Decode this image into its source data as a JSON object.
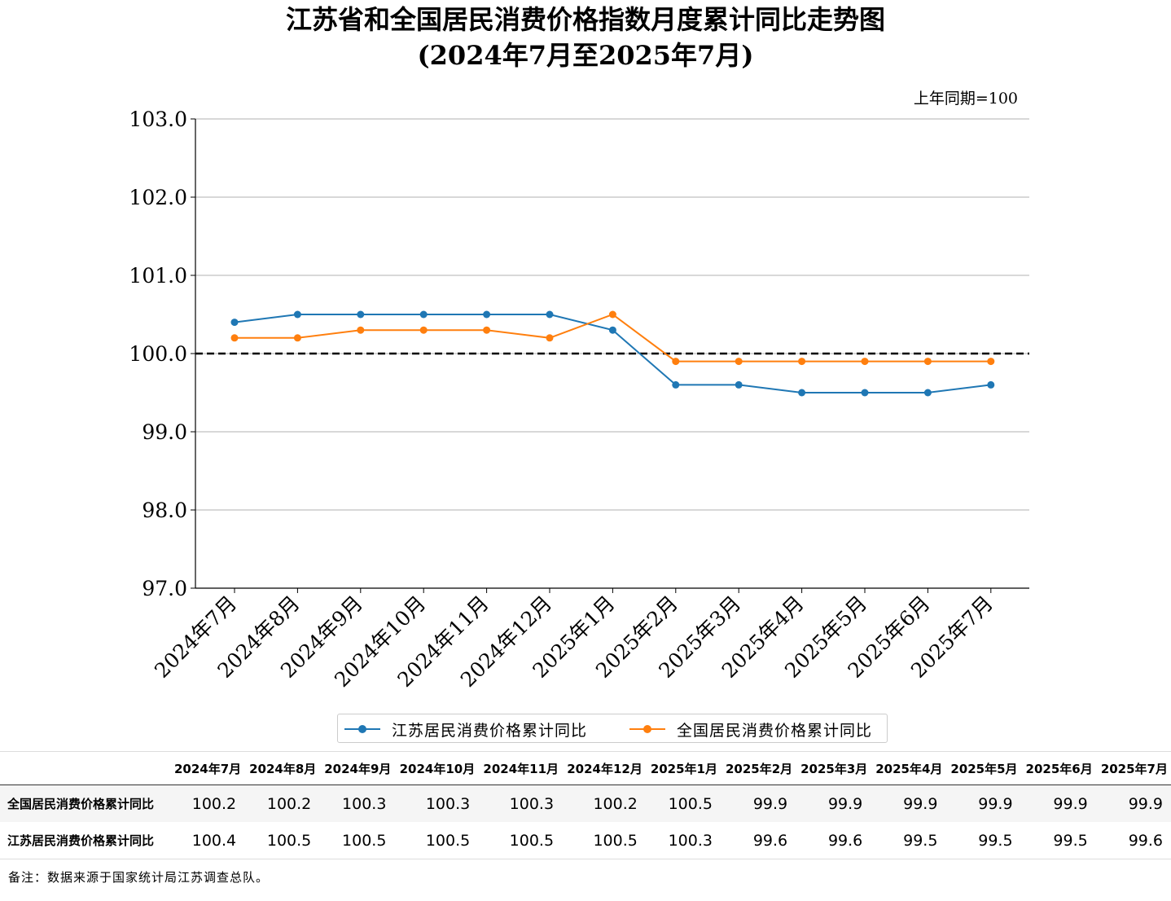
{
  "chart_data": {
    "type": "line",
    "title": "江苏省和全国居民消费价格指数月度累计同比走势图",
    "subtitle": "(2024年7月至2025年7月)",
    "unit_note": "上年同期=100",
    "categories": [
      "2024年7月",
      "2024年8月",
      "2024年9月",
      "2024年10月",
      "2024年11月",
      "2024年12月",
      "2025年1月",
      "2025年2月",
      "2025年3月",
      "2025年4月",
      "2025年5月",
      "2025年6月",
      "2025年7月"
    ],
    "series": [
      {
        "name": "江苏居民消费价格累计同比",
        "color": "#1f77b4",
        "values": [
          100.4,
          100.5,
          100.5,
          100.5,
          100.5,
          100.5,
          100.3,
          99.6,
          99.6,
          99.5,
          99.5,
          99.5,
          99.6
        ]
      },
      {
        "name": "全国居民消费价格累计同比",
        "color": "#ff7f0e",
        "values": [
          100.2,
          100.2,
          100.3,
          100.3,
          100.3,
          100.2,
          100.5,
          99.9,
          99.9,
          99.9,
          99.9,
          99.9,
          99.9
        ]
      }
    ],
    "ylim": [
      97.0,
      103.0
    ],
    "yticks": [
      "97.0",
      "98.0",
      "99.0",
      "100.0",
      "101.0",
      "102.0",
      "103.0"
    ],
    "reference_line": 100.0,
    "grid": "horizontal",
    "legend_position": "bottom-center"
  },
  "table": {
    "headers": [
      "2024年7月",
      "2024年8月",
      "2024年9月",
      "2024年10月",
      "2024年11月",
      "2024年12月",
      "2025年1月",
      "2025年2月",
      "2025年3月",
      "2025年4月",
      "2025年5月",
      "2025年6月",
      "2025年7月"
    ],
    "rows": [
      {
        "label": "全国居民消费价格累计同比",
        "values": [
          "100.2",
          "100.2",
          "100.3",
          "100.3",
          "100.3",
          "100.2",
          "100.5",
          "99.9",
          "99.9",
          "99.9",
          "99.9",
          "99.9",
          "99.9"
        ]
      },
      {
        "label": "江苏居民消费价格累计同比",
        "values": [
          "100.4",
          "100.5",
          "100.5",
          "100.5",
          "100.5",
          "100.5",
          "100.3",
          "99.6",
          "99.6",
          "99.5",
          "99.5",
          "99.5",
          "99.6"
        ]
      }
    ]
  },
  "footnote": "备注：数据来源于国家统计局江苏调查总队。"
}
